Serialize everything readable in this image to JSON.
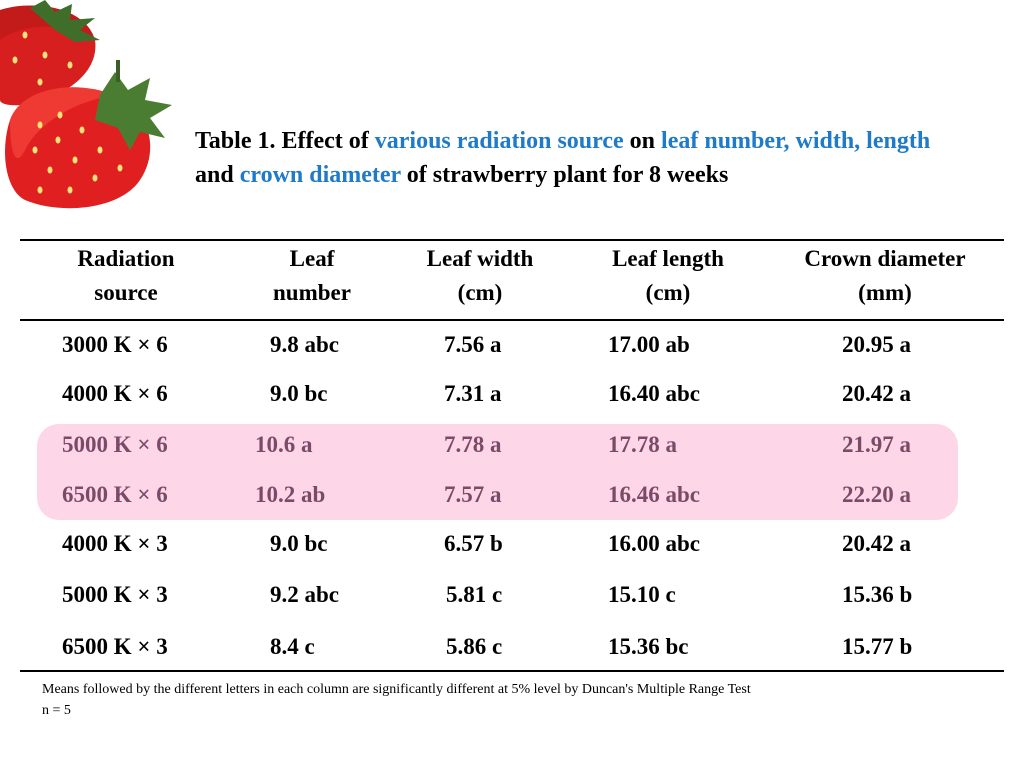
{
  "title": {
    "p1": "Table 1. Effect of ",
    "h1": "various radiation source",
    "p2": " on ",
    "h2": "leaf number, width, length",
    "p3": " and ",
    "h3": "crown diameter",
    "p4": " of strawberry plant for 8 weeks"
  },
  "table": {
    "headers": [
      [
        "Radiation",
        "source"
      ],
      [
        "Leaf",
        "number"
      ],
      [
        "Leaf width",
        "(cm)"
      ],
      [
        "Leaf length",
        "(cm)"
      ],
      [
        "Crown diameter",
        "(mm)"
      ]
    ],
    "rows": [
      [
        "3000 K × 6",
        "9.8 abc",
        "7.56 a",
        "17.00 ab",
        "20.95 a"
      ],
      [
        "4000 K × 6",
        "9.0 bc",
        "7.31 a",
        "16.40 abc",
        "20.42 a"
      ],
      [
        "5000 K × 6",
        "10.6 a",
        "7.78 a",
        "17.78 a",
        "21.97 a"
      ],
      [
        "6500 K × 6",
        "10.2 ab",
        "7.57 a",
        "16.46 abc",
        "22.20 a"
      ],
      [
        "4000 K × 3",
        "9.0 bc",
        "6.57 b",
        "16.00 abc",
        "20.42 a"
      ],
      [
        "5000 K × 3",
        "9.2 abc",
        "5.81 c",
        "15.10 c",
        "15.36 b"
      ],
      [
        "6500 K × 3",
        "8.4 c",
        "5.86 c",
        "15.36 bc",
        "15.77 b"
      ]
    ],
    "highlighted_rows": [
      2,
      3
    ],
    "highlight_color": "#fdd6e8"
  },
  "footnote": {
    "line1": "Means followed by the different letters in each column are significantly different  at 5% level by Duncan's Multiple Range Test",
    "line2": "n = 5"
  },
  "colors": {
    "accent": "#1f7ac7",
    "highlight_text": "#7a4a68"
  },
  "decoration": {
    "icon": "strawberry-icon"
  }
}
